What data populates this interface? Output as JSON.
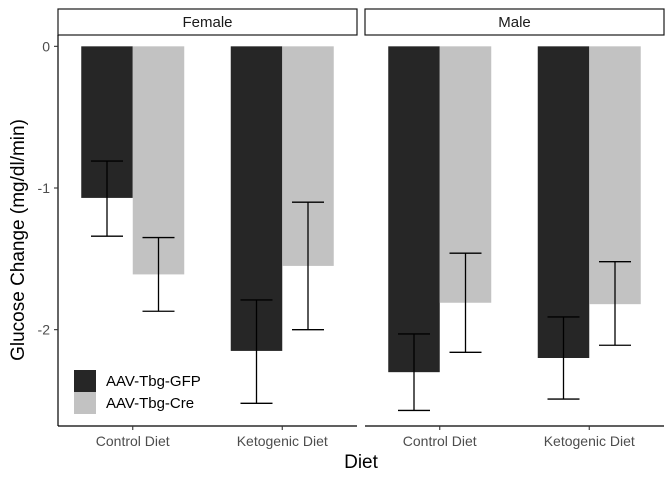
{
  "chart_data": {
    "type": "bar",
    "xlabel": "Diet",
    "ylabel": "Glucose Change (mg/dl/min)",
    "ylim": [
      -2.68,
      0.08
    ],
    "yticks": [
      0,
      -1,
      -2
    ],
    "categories": [
      "Control Diet",
      "Ketogenic Diet"
    ],
    "panels": [
      {
        "facet": "Female",
        "series": [
          {
            "name": "AAV-Tbg-GFP",
            "color": "#262626",
            "values": [
              -1.07,
              -2.15
            ],
            "error_low": [
              -1.34,
              -2.52
            ],
            "error_high": [
              -0.81,
              -1.79
            ]
          },
          {
            "name": "AAV-Tbg-Cre",
            "color": "#c2c2c2",
            "values": [
              -1.61,
              -1.55
            ],
            "error_low": [
              -1.87,
              -2.0
            ],
            "error_high": [
              -1.35,
              -1.1
            ]
          }
        ]
      },
      {
        "facet": "Male",
        "series": [
          {
            "name": "AAV-Tbg-GFP",
            "color": "#262626",
            "values": [
              -2.3,
              -2.2
            ],
            "error_low": [
              -2.57,
              -2.49
            ],
            "error_high": [
              -2.03,
              -1.91
            ]
          },
          {
            "name": "AAV-Tbg-Cre",
            "color": "#c2c2c2",
            "values": [
              -1.81,
              -1.82
            ],
            "error_low": [
              -2.16,
              -2.11
            ],
            "error_high": [
              -1.46,
              -1.52
            ]
          }
        ]
      }
    ],
    "legend": {
      "position": "bottom-left-inside",
      "entries": [
        {
          "label": "AAV-Tbg-GFP",
          "color": "#262626"
        },
        {
          "label": "AAV-Tbg-Cre",
          "color": "#c2c2c2"
        }
      ]
    },
    "grid": false
  }
}
